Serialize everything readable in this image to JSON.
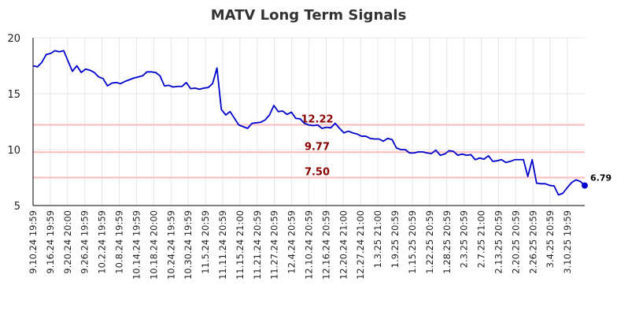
{
  "chart_data": {
    "type": "line",
    "title": "MATV Long Term Signals",
    "xlabel": "",
    "ylabel": "",
    "ylim": [
      5,
      20
    ],
    "yticks": [
      5,
      10,
      15,
      20
    ],
    "grid": true,
    "line_color": "#0000cc",
    "level_color": "#ffbbbb",
    "level_label_color": "#8b0000",
    "x_tick_labels": [
      "9.10.24 19:59",
      "9.16.24 19:59",
      "9.20.24 20:00",
      "9.26.24 19:59",
      "10.2.24 19:59",
      "10.8.24 19:59",
      "10.14.24 19:59",
      "10.18.24 20:00",
      "10.24.24 19:59",
      "10.30.24 19:59",
      "11.5.24 20:59",
      "11.11.24 20:59",
      "11.15.24 21:00",
      "11.21.24 20:59",
      "11.27.24 20:59",
      "12.4.24 20:59",
      "12.10.24 20:59",
      "12.16.24 20:59",
      "12.20.24 21:00",
      "12.27.24 21:00",
      "1.3.25 21:00",
      "1.9.25 20:59",
      "1.15.25 20:59",
      "1.22.25 20:59",
      "1.28.25 20:59",
      "2.3.25 20:59",
      "2.7.25 21:00",
      "2.13.25 20:59",
      "2.20.25 20:59",
      "2.26.25 20:59",
      "3.4.25 20:59",
      "3.10.25 19:59"
    ],
    "levels": [
      {
        "value": 12.22,
        "label": "12.22"
      },
      {
        "value": 9.77,
        "label": "9.77"
      },
      {
        "value": 7.5,
        "label": "7.50"
      }
    ],
    "last_value_label": "6.79",
    "series": [
      {
        "values": [
          17.5,
          17.4,
          17.8,
          18.5,
          18.6,
          18.85,
          18.75,
          18.85,
          17.9,
          17.0,
          17.5,
          16.9,
          17.2,
          17.1,
          16.9,
          16.5,
          16.35,
          15.7,
          15.95,
          16.0,
          15.9,
          16.1,
          16.25,
          16.4,
          16.5,
          16.6,
          16.95,
          16.95,
          16.9,
          16.6,
          15.7,
          15.75,
          15.6,
          15.65,
          15.65,
          16.0,
          15.45,
          15.5,
          15.4,
          15.5,
          15.55,
          15.9,
          17.3,
          13.6,
          13.1,
          13.4,
          12.8,
          12.2,
          12.05,
          11.9,
          12.35,
          12.4,
          12.45,
          12.65,
          13.1,
          13.95,
          13.4,
          13.45,
          13.15,
          13.35,
          12.8,
          12.75,
          12.35,
          12.2,
          12.15,
          12.2,
          11.9,
          12.0,
          11.95,
          12.35,
          11.9,
          11.5,
          11.65,
          11.5,
          11.4,
          11.2,
          11.2,
          11.0,
          10.95,
          10.95,
          10.75,
          11.0,
          10.9,
          10.15,
          10.0,
          10.0,
          9.7,
          9.7,
          9.8,
          9.8,
          9.7,
          9.65,
          9.95,
          9.5,
          9.6,
          9.9,
          9.85,
          9.5,
          9.6,
          9.5,
          9.55,
          9.1,
          9.25,
          9.15,
          9.45,
          8.95,
          9.0,
          9.1,
          8.85,
          8.95,
          9.1,
          9.1,
          9.1,
          7.6,
          9.1,
          7.0,
          6.95,
          6.95,
          6.8,
          6.75,
          5.95,
          6.1,
          6.6,
          7.05,
          7.3,
          7.15,
          6.79
        ]
      }
    ]
  }
}
